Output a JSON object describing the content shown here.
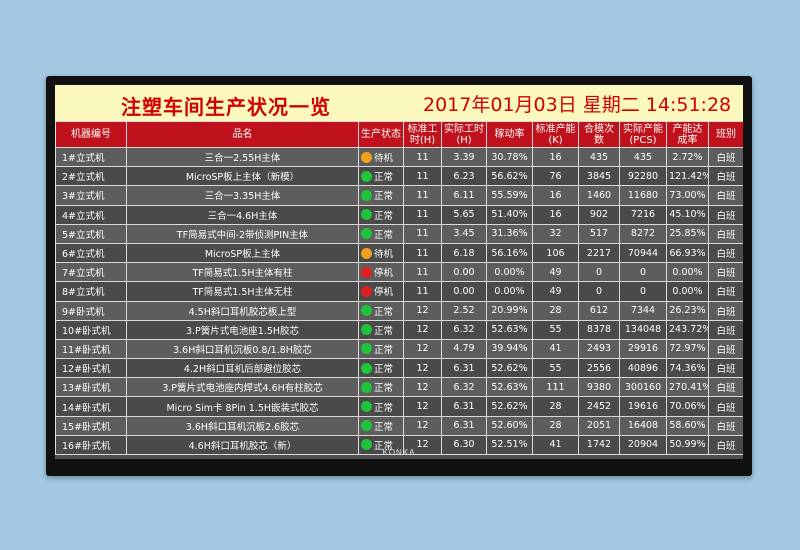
{
  "title": "注塑车间生产状况一览",
  "clock": "2017年01月03日 星期二 14:51:28",
  "brand": "KONKA",
  "status_colors": {
    "待机": "#f3a11c",
    "正常": "#1ec43a",
    "停机": "#e02020"
  },
  "columns": [
    "机器编号",
    "品名",
    "生产状态",
    "标准工时(H)",
    "实际工时(H)",
    "稼动率",
    "标准产能(K)",
    "合模次数",
    "实际产能(PCS)",
    "产能达成率",
    "班别"
  ],
  "rows": [
    {
      "machine": "1#立式机",
      "product": "三合一2.55H主体",
      "status": "待机",
      "std_hours": "11",
      "act_hours": "3.39",
      "utilization": "30.78%",
      "std_capacity": "16",
      "mold_count": "435",
      "act_capacity": "435",
      "achievement": "2.72%",
      "shift": "白班"
    },
    {
      "machine": "2#立式机",
      "product": "MicroSP板上主体（新模）",
      "status": "正常",
      "std_hours": "11",
      "act_hours": "6.23",
      "utilization": "56.62%",
      "std_capacity": "76",
      "mold_count": "3845",
      "act_capacity": "92280",
      "achievement": "121.42%",
      "shift": "白班"
    },
    {
      "machine": "3#立式机",
      "product": "三合一3.35H主体",
      "status": "正常",
      "std_hours": "11",
      "act_hours": "6.11",
      "utilization": "55.59%",
      "std_capacity": "16",
      "mold_count": "1460",
      "act_capacity": "11680",
      "achievement": "73.00%",
      "shift": "白班"
    },
    {
      "machine": "4#立式机",
      "product": "三合一4.6H主体",
      "status": "正常",
      "std_hours": "11",
      "act_hours": "5.65",
      "utilization": "51.40%",
      "std_capacity": "16",
      "mold_count": "902",
      "act_capacity": "7216",
      "achievement": "45.10%",
      "shift": "白班"
    },
    {
      "machine": "5#立式机",
      "product": "TF简易式中间-2带侦测PIN主体",
      "status": "正常",
      "std_hours": "11",
      "act_hours": "3.45",
      "utilization": "31.36%",
      "std_capacity": "32",
      "mold_count": "517",
      "act_capacity": "8272",
      "achievement": "25.85%",
      "shift": "白班"
    },
    {
      "machine": "6#立式机",
      "product": "MicroSP板上主体",
      "status": "待机",
      "std_hours": "11",
      "act_hours": "6.18",
      "utilization": "56.16%",
      "std_capacity": "106",
      "mold_count": "2217",
      "act_capacity": "70944",
      "achievement": "66.93%",
      "shift": "白班"
    },
    {
      "machine": "7#立式机",
      "product": "TF简易式1.5H主体有柱",
      "status": "停机",
      "std_hours": "11",
      "act_hours": "0.00",
      "utilization": "0.00%",
      "std_capacity": "49",
      "mold_count": "0",
      "act_capacity": "0",
      "achievement": "0.00%",
      "shift": "白班"
    },
    {
      "machine": "8#立式机",
      "product": "TF简易式1.5H主体无柱",
      "status": "停机",
      "std_hours": "11",
      "act_hours": "0.00",
      "utilization": "0.00%",
      "std_capacity": "49",
      "mold_count": "0",
      "act_capacity": "0",
      "achievement": "0.00%",
      "shift": "白班"
    },
    {
      "machine": "9#卧式机",
      "product": "4.5H斜口耳机胶芯板上型",
      "status": "正常",
      "std_hours": "12",
      "act_hours": "2.52",
      "utilization": "20.99%",
      "std_capacity": "28",
      "mold_count": "612",
      "act_capacity": "7344",
      "achievement": "26.23%",
      "shift": "白班"
    },
    {
      "machine": "10#卧式机",
      "product": "3.P簧片式电池座1.5H胶芯",
      "status": "正常",
      "std_hours": "12",
      "act_hours": "6.32",
      "utilization": "52.63%",
      "std_capacity": "55",
      "mold_count": "8378",
      "act_capacity": "134048",
      "achievement": "243.72%",
      "shift": "白班"
    },
    {
      "machine": "11#卧式机",
      "product": "3.6H斜口耳机沉板0.8/1.8H胶芯",
      "status": "正常",
      "std_hours": "12",
      "act_hours": "4.79",
      "utilization": "39.94%",
      "std_capacity": "41",
      "mold_count": "2493",
      "act_capacity": "29916",
      "achievement": "72.97%",
      "shift": "白班"
    },
    {
      "machine": "12#卧式机",
      "product": "4.2H斜口耳机后部避位胶芯",
      "status": "正常",
      "std_hours": "12",
      "act_hours": "6.31",
      "utilization": "52.62%",
      "std_capacity": "55",
      "mold_count": "2556",
      "act_capacity": "40896",
      "achievement": "74.36%",
      "shift": "白班"
    },
    {
      "machine": "13#卧式机",
      "product": "3.P簧片式电池座内焊式4.6H有柱胶芯",
      "status": "正常",
      "std_hours": "12",
      "act_hours": "6.32",
      "utilization": "52.63%",
      "std_capacity": "111",
      "mold_count": "9380",
      "act_capacity": "300160",
      "achievement": "270.41%",
      "shift": "白班"
    },
    {
      "machine": "14#卧式机",
      "product": "Micro Sim卡 8Pin 1.5H嵌装式胶芯",
      "status": "正常",
      "std_hours": "12",
      "act_hours": "6.31",
      "utilization": "52.62%",
      "std_capacity": "28",
      "mold_count": "2452",
      "act_capacity": "19616",
      "achievement": "70.06%",
      "shift": "白班"
    },
    {
      "machine": "15#卧式机",
      "product": "3.6H斜口耳机沉板2.6胶芯",
      "status": "正常",
      "std_hours": "12",
      "act_hours": "6.31",
      "utilization": "52.60%",
      "std_capacity": "28",
      "mold_count": "2051",
      "act_capacity": "16408",
      "achievement": "58.60%",
      "shift": "白班"
    },
    {
      "machine": "16#卧式机",
      "product": "4.6H斜口耳机胶芯（新）",
      "status": "正常",
      "std_hours": "12",
      "act_hours": "6.30",
      "utilization": "52.51%",
      "std_capacity": "41",
      "mold_count": "1742",
      "act_capacity": "20904",
      "achievement": "50.99%",
      "shift": "白班"
    }
  ]
}
